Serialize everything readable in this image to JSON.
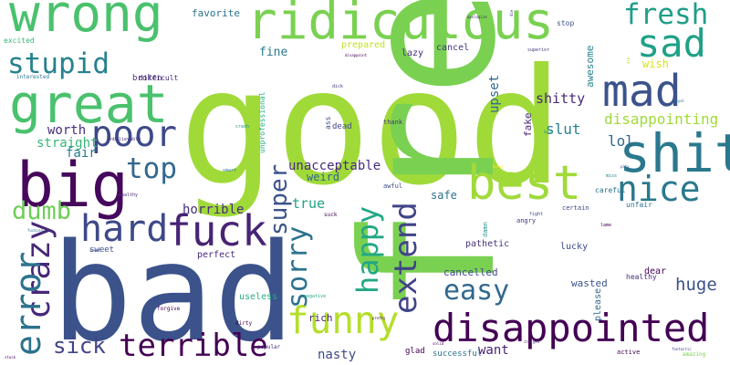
{
  "word_cloud": {
    "words": [
      {
        "text": "good",
        "color": "#a0da39"
      },
      {
        "text": "free",
        "color": "#7ad151"
      },
      {
        "text": "bad",
        "color": "#3b528b"
      },
      {
        "text": "wrong",
        "color": "#4ac16d"
      },
      {
        "text": "ridiculous",
        "color": "#7ad151"
      },
      {
        "text": "great",
        "color": "#4ac16d"
      },
      {
        "text": "big",
        "color": "#46085c"
      },
      {
        "text": "disappointed",
        "color": "#440154"
      },
      {
        "text": "fuck",
        "color": "#482475"
      },
      {
        "text": "shit",
        "color": "#2a788e"
      },
      {
        "text": "mad",
        "color": "#3b528b"
      },
      {
        "text": "sad",
        "color": "#1fa187"
      },
      {
        "text": "fresh",
        "color": "#1f9e89"
      },
      {
        "text": "stupid",
        "color": "#26828e"
      },
      {
        "text": "poor",
        "color": "#3e4989"
      },
      {
        "text": "best",
        "color": "#a0da39"
      },
      {
        "text": "nice",
        "color": "#2a788e"
      },
      {
        "text": "hard",
        "color": "#3e4989"
      },
      {
        "text": "crazy",
        "color": "#482878"
      },
      {
        "text": "error",
        "color": "#2c728e"
      },
      {
        "text": "funny",
        "color": "#b5de2b"
      },
      {
        "text": "terrible",
        "color": "#440154"
      },
      {
        "text": "extend",
        "color": "#414487"
      },
      {
        "text": "happy",
        "color": "#22a884"
      },
      {
        "text": "easy",
        "color": "#31688e"
      },
      {
        "text": "sorry",
        "color": "#2c728e"
      },
      {
        "text": "top",
        "color": "#31688e"
      },
      {
        "text": "dumb",
        "color": "#6ece58"
      },
      {
        "text": "super",
        "color": "#3b528b"
      },
      {
        "text": "sick",
        "color": "#414487"
      },
      {
        "text": "disappointing",
        "color": "#a0da39"
      },
      {
        "text": "huge",
        "color": "#3b528b"
      },
      {
        "text": "lol",
        "color": "#31688e"
      },
      {
        "text": "slut",
        "color": "#26828e"
      },
      {
        "text": "shitty",
        "color": "#482878"
      },
      {
        "text": "worth",
        "color": "#472d7b"
      },
      {
        "text": "straight",
        "color": "#35b779"
      },
      {
        "text": "fair",
        "color": "#287c8e"
      },
      {
        "text": "unacceptable",
        "color": "#472c7a"
      },
      {
        "text": "true",
        "color": "#20a486"
      },
      {
        "text": "weird",
        "color": "#31688e"
      },
      {
        "text": "horrible",
        "color": "#472d7b"
      },
      {
        "text": "want",
        "color": "#482475"
      },
      {
        "text": "nasty",
        "color": "#3e4989"
      },
      {
        "text": "rich",
        "color": "#481b6d"
      },
      {
        "text": "fine",
        "color": "#2a788e"
      },
      {
        "text": "favorite",
        "color": "#2c728e"
      },
      {
        "text": "prepared",
        "color": "#c2df23"
      },
      {
        "text": "lazy",
        "color": "#472c7a"
      },
      {
        "text": "cancel",
        "color": "#46337f"
      },
      {
        "text": "upset",
        "color": "#31688e"
      },
      {
        "text": "wish",
        "color": "#d8e219"
      },
      {
        "text": "awesome",
        "color": "#26828e"
      },
      {
        "text": "fake",
        "color": "#482878"
      },
      {
        "text": "safe",
        "color": "#2c728e"
      },
      {
        "text": "cancelled",
        "color": "#3e4989"
      },
      {
        "text": "wasted",
        "color": "#3b528b"
      },
      {
        "text": "pathetic",
        "color": "#46337f"
      },
      {
        "text": "perfect",
        "color": "#482878"
      },
      {
        "text": "sweet",
        "color": "#3b528b"
      },
      {
        "text": "useless",
        "color": "#27ad81"
      },
      {
        "text": "dear",
        "color": "#440154"
      },
      {
        "text": "lucky",
        "color": "#3e4989"
      },
      {
        "text": "please",
        "color": "#31688e"
      },
      {
        "text": "healthy",
        "color": "#472c7a"
      },
      {
        "text": "broken",
        "color": "#46337f"
      },
      {
        "text": "difficult",
        "color": "#482878"
      },
      {
        "text": "excited",
        "color": "#35b779"
      },
      {
        "text": "unprofessional",
        "color": "#27ad81"
      },
      {
        "text": "ass",
        "color": "#3e4989"
      },
      {
        "text": "dead",
        "color": "#3e4989"
      },
      {
        "text": "thank",
        "color": "#46337f"
      },
      {
        "text": "angry",
        "color": "#46337f"
      },
      {
        "text": "certain",
        "color": "#3e4989"
      },
      {
        "text": "careful",
        "color": "#2c728e"
      },
      {
        "text": "unfair",
        "color": "#2c728e"
      },
      {
        "text": "suck",
        "color": "#440154"
      },
      {
        "text": "awful",
        "color": "#3e4989"
      },
      {
        "text": "damn",
        "color": "#21918c"
      },
      {
        "text": "stop",
        "color": "#3b528b"
      },
      {
        "text": "interested",
        "color": "#2a788e"
      },
      {
        "text": "unbelievable",
        "color": "#46337f"
      },
      {
        "text": "dirty",
        "color": "#440154"
      },
      {
        "text": "forgive",
        "color": "#440154"
      },
      {
        "text": "glad",
        "color": "#440154"
      },
      {
        "text": "successful",
        "color": "#2c728e"
      },
      {
        "text": "active",
        "color": "#440154"
      },
      {
        "text": "amazing",
        "color": "#7ad151"
      },
      {
        "text": "popular",
        "color": "#472c7a"
      },
      {
        "text": "negative",
        "color": "#22a884"
      },
      {
        "text": "crash",
        "color": "#21918c"
      },
      {
        "text": "smart",
        "color": "#2a788e"
      },
      {
        "text": "wealthy",
        "color": "#482878"
      },
      {
        "text": "fight",
        "color": "#3e4989"
      },
      {
        "text": "lame",
        "color": "#440154"
      },
      {
        "text": "miss",
        "color": "#26828e"
      },
      {
        "text": "dick",
        "color": "#46337f"
      },
      {
        "text": "disappoint",
        "color": "#440154"
      },
      {
        "text": "superior",
        "color": "#46337f"
      },
      {
        "text": "apologize",
        "color": "#482878"
      },
      {
        "text": "sweet",
        "color": "#3b528b"
      },
      {
        "text": "fucking",
        "color": "#2c728e"
      },
      {
        "text": "loyal",
        "color": "#2c728e"
      },
      {
        "text": "solid",
        "color": "#440154"
      },
      {
        "text": "charged",
        "color": "#46337f"
      },
      {
        "text": "fantastic",
        "color": "#3e4989"
      },
      {
        "text": "honor",
        "color": "#fde725"
      },
      {
        "text": "help",
        "color": "#21918c"
      },
      {
        "text": "pity",
        "color": "#3b528b"
      },
      {
        "text": "stuck",
        "color": "#440154"
      },
      {
        "text": "pretty",
        "color": "#440154"
      },
      {
        "text": "dim",
        "color": "#bddf26"
      },
      {
        "text": "die",
        "color": "#472c7a"
      }
    ]
  }
}
